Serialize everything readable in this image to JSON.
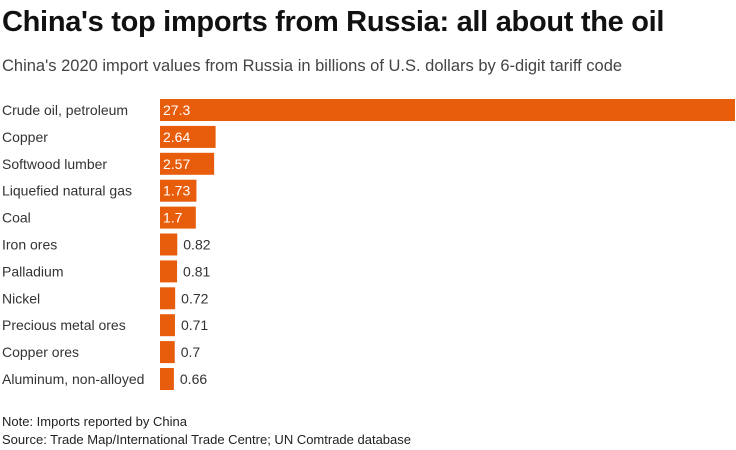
{
  "header": {
    "title": "China's top imports from Russia: all about the oil",
    "subtitle": "China's 2020 import values from Russia in billions of U.S. dollars by 6-digit tariff code"
  },
  "footer": {
    "note": "Note: Imports reported by China",
    "source": "Source: Trade Map/International Trade Centre; UN Comtrade database"
  },
  "colors": {
    "bar": "#e85d0c",
    "label_inside": "#ffffff",
    "label_outside": "#333333"
  },
  "chart_data": {
    "type": "bar",
    "orientation": "horizontal",
    "title": "China's top imports from Russia: all about the oil",
    "subtitle": "China's 2020 import values from Russia in billions of U.S. dollars by 6-digit tariff code",
    "categories": [
      "Crude oil, petroleum",
      "Copper",
      "Softwood lumber",
      "Liquefied natural gas",
      "Coal",
      "Iron ores",
      "Palladium",
      "Nickel",
      "Precious metal ores",
      "Copper ores",
      "Aluminum, non-alloyed"
    ],
    "values": [
      27.3,
      2.64,
      2.57,
      1.73,
      1.7,
      0.82,
      0.81,
      0.72,
      0.71,
      0.7,
      0.66
    ],
    "value_labels": [
      "27.3",
      "2.64",
      "2.57",
      "1.73",
      "1.7",
      "0.82",
      "0.81",
      "0.72",
      "0.71",
      "0.7",
      "0.66"
    ],
    "xlim": [
      0,
      27.3
    ],
    "grid": false,
    "legend": false
  }
}
